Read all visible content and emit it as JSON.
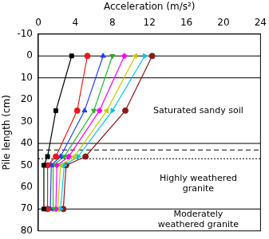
{
  "chart_data": {
    "type": "line",
    "x_label": "Acceleration (m/s²)",
    "y_label": "Pile length (cm)",
    "xlim": [
      0,
      24
    ],
    "xticks": [
      0,
      4,
      8,
      12,
      16,
      20,
      24
    ],
    "ylim": [
      -10,
      80
    ],
    "yticks": [
      -10,
      0,
      10,
      20,
      30,
      40,
      50,
      60,
      70,
      80
    ],
    "grid": false,
    "y": [
      0,
      25,
      46,
      50,
      70
    ],
    "series": [
      {
        "color": "#000000",
        "marker": "square",
        "values": [
          3.6,
          1.9,
          1.0,
          0.6,
          0.6
        ]
      },
      {
        "color": "#e8191b",
        "marker": "circle",
        "values": [
          5.3,
          4.2,
          1.9,
          1.0,
          1.0
        ]
      },
      {
        "color": "#1f3fff",
        "marker": "triangle-up",
        "values": [
          7.0,
          5.0,
          2.4,
          1.4,
          1.3
        ]
      },
      {
        "color": "#22b422",
        "marker": "triangle-down",
        "values": [
          8.0,
          6.0,
          2.8,
          1.6,
          1.6
        ]
      },
      {
        "color": "#ff00ff",
        "marker": "diamond",
        "values": [
          9.3,
          6.6,
          3.3,
          2.0,
          1.9
        ]
      },
      {
        "color": "#c8c800",
        "marker": "triangle-left",
        "values": [
          10.5,
          7.4,
          3.9,
          2.4,
          2.1
        ]
      },
      {
        "color": "#00c8e6",
        "marker": "triangle-right",
        "values": [
          11.5,
          8.0,
          4.3,
          2.8,
          2.4
        ]
      },
      {
        "color": "#8b1a1a",
        "marker": "circle",
        "values": [
          12.3,
          9.4,
          5.1,
          3.0,
          2.7
        ]
      }
    ],
    "reference_lines": [
      {
        "value": 0,
        "line_style": "solid"
      },
      {
        "value": 10,
        "line_style": "solid"
      },
      {
        "value": 40,
        "line_style": "solid"
      },
      {
        "value": 43,
        "line_style": "dashed"
      },
      {
        "value": 47,
        "line_style": "dotted"
      },
      {
        "value": 70,
        "line_style": "solid"
      }
    ],
    "layers": [
      {
        "label": "Saturated sandy soil",
        "top": 10,
        "bottom": 40
      },
      {
        "label": "Highly weathered granite",
        "top": 47,
        "bottom": 70
      },
      {
        "label": "Moderately weathered granite",
        "top": 70,
        "bottom": 80
      }
    ]
  }
}
